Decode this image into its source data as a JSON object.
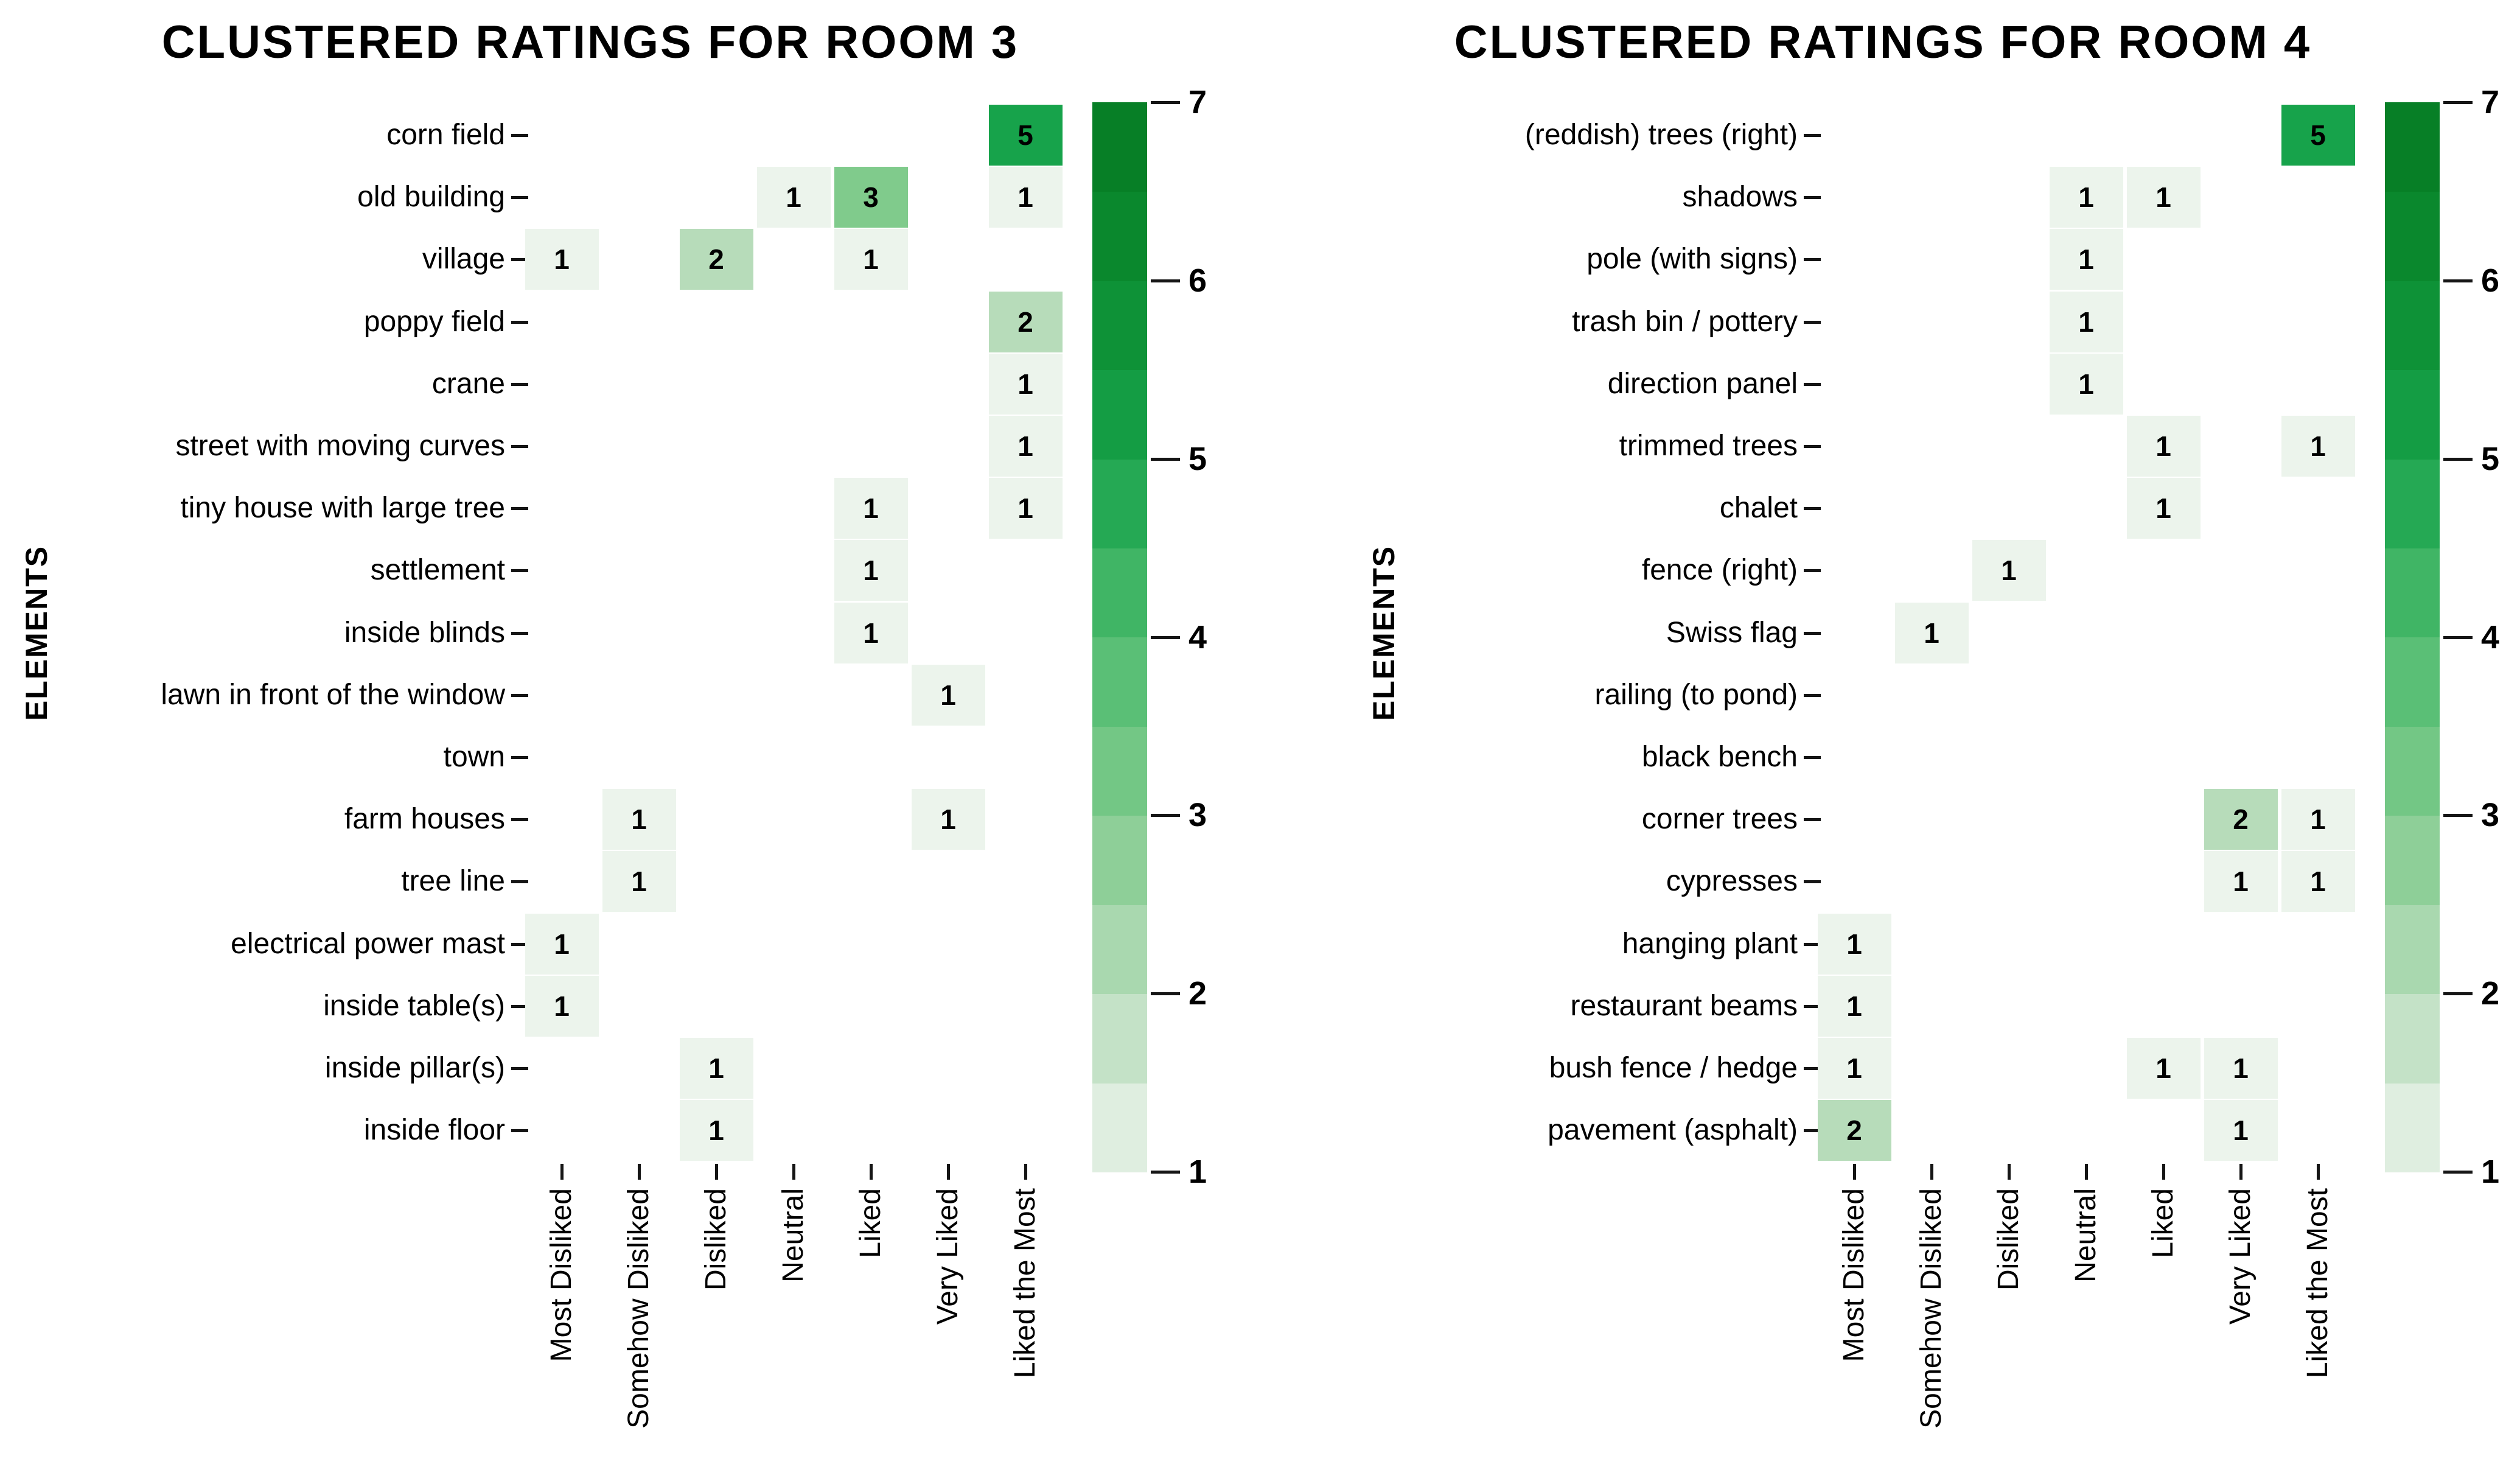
{
  "page": {
    "background": "#ffffff",
    "text_color": "#000000"
  },
  "colormap": {
    "1": "#ecf4ec",
    "2": "#b7dcba",
    "3": "#80cb8c",
    "4": "#4dbb6e",
    "5": "#17a34b",
    "6": "#0b8c30",
    "7": "#067a22"
  },
  "chart_data": [
    {
      "type": "heatmap",
      "title": "CLUSTERED RATINGS FOR ROOM 3",
      "ylabel": "ELEMENTS",
      "xlabel": "",
      "grid": false,
      "legend_position": "right-colorbar",
      "columns": [
        "Most Disliked",
        "Somehow Disliked",
        "Disliked",
        "Neutral",
        "Liked",
        "Very Liked",
        "Liked the Most"
      ],
      "rows": [
        "corn field",
        "old building",
        "village",
        "poppy field",
        "crane",
        "street with moving curves",
        "tiny house with large tree",
        "settlement",
        "inside blinds",
        "lawn in front of the window",
        "town",
        "farm houses",
        "tree line",
        "electrical power mast",
        "inside table(s)",
        "inside pillar(s)",
        "inside floor"
      ],
      "cells": [
        {
          "row": "corn field",
          "col": "Liked the Most",
          "value": 5
        },
        {
          "row": "old building",
          "col": "Neutral",
          "value": 1
        },
        {
          "row": "old building",
          "col": "Liked",
          "value": 3
        },
        {
          "row": "old building",
          "col": "Liked the Most",
          "value": 1
        },
        {
          "row": "village",
          "col": "Most Disliked",
          "value": 1
        },
        {
          "row": "village",
          "col": "Disliked",
          "value": 2
        },
        {
          "row": "village",
          "col": "Liked",
          "value": 1
        },
        {
          "row": "poppy field",
          "col": "Liked the Most",
          "value": 2
        },
        {
          "row": "crane",
          "col": "Liked the Most",
          "value": 1
        },
        {
          "row": "street with moving curves",
          "col": "Liked the Most",
          "value": 1
        },
        {
          "row": "tiny house with large tree",
          "col": "Liked",
          "value": 1
        },
        {
          "row": "tiny house with large tree",
          "col": "Liked the Most",
          "value": 1
        },
        {
          "row": "settlement",
          "col": "Liked",
          "value": 1
        },
        {
          "row": "inside blinds",
          "col": "Liked",
          "value": 1
        },
        {
          "row": "lawn in front of the window",
          "col": "Very Liked",
          "value": 1
        },
        {
          "row": "farm houses",
          "col": "Somehow Disliked",
          "value": 1
        },
        {
          "row": "farm houses",
          "col": "Very Liked",
          "value": 1
        },
        {
          "row": "tree line",
          "col": "Somehow Disliked",
          "value": 1
        },
        {
          "row": "electrical power mast",
          "col": "Most Disliked",
          "value": 1
        },
        {
          "row": "inside table(s)",
          "col": "Most Disliked",
          "value": 1
        },
        {
          "row": "inside pillar(s)",
          "col": "Disliked",
          "value": 1
        },
        {
          "row": "inside floor",
          "col": "Disliked",
          "value": 1
        }
      ],
      "colorbar": {
        "min": 1,
        "max": 7,
        "ticks": [
          7,
          6,
          5,
          4,
          3,
          2,
          1
        ]
      }
    },
    {
      "type": "heatmap",
      "title": "CLUSTERED RATINGS FOR ROOM 4",
      "ylabel": "ELEMENTS",
      "xlabel": "",
      "grid": false,
      "legend_position": "right-colorbar",
      "columns": [
        "Most Disliked",
        "Somehow Disliked",
        "Disliked",
        "Neutral",
        "Liked",
        "Very Liked",
        "Liked the Most"
      ],
      "rows": [
        "(reddish) trees (right)",
        "shadows",
        "pole (with signs)",
        "trash bin / pottery",
        "direction panel",
        "trimmed trees",
        "chalet",
        "fence (right)",
        "Swiss flag",
        "railing (to pond)",
        "black bench",
        "corner trees",
        "cypresses",
        "hanging plant",
        "restaurant beams",
        "bush fence / hedge",
        "pavement (asphalt)"
      ],
      "cells": [
        {
          "row": "(reddish) trees (right)",
          "col": "Liked the Most",
          "value": 5
        },
        {
          "row": "shadows",
          "col": "Neutral",
          "value": 1
        },
        {
          "row": "shadows",
          "col": "Liked",
          "value": 1
        },
        {
          "row": "pole (with signs)",
          "col": "Neutral",
          "value": 1
        },
        {
          "row": "trash bin / pottery",
          "col": "Neutral",
          "value": 1
        },
        {
          "row": "direction panel",
          "col": "Neutral",
          "value": 1
        },
        {
          "row": "trimmed trees",
          "col": "Liked",
          "value": 1
        },
        {
          "row": "trimmed trees",
          "col": "Liked the Most",
          "value": 1
        },
        {
          "row": "chalet",
          "col": "Liked",
          "value": 1
        },
        {
          "row": "fence (right)",
          "col": "Disliked",
          "value": 1
        },
        {
          "row": "Swiss flag",
          "col": "Somehow Disliked",
          "value": 1
        },
        {
          "row": "corner trees",
          "col": "Very Liked",
          "value": 2
        },
        {
          "row": "corner trees",
          "col": "Liked the Most",
          "value": 1
        },
        {
          "row": "cypresses",
          "col": "Very Liked",
          "value": 1
        },
        {
          "row": "cypresses",
          "col": "Liked the Most",
          "value": 1
        },
        {
          "row": "hanging plant",
          "col": "Most Disliked",
          "value": 1
        },
        {
          "row": "restaurant beams",
          "col": "Most Disliked",
          "value": 1
        },
        {
          "row": "bush fence / hedge",
          "col": "Most Disliked",
          "value": 1
        },
        {
          "row": "bush fence / hedge",
          "col": "Liked",
          "value": 1
        },
        {
          "row": "bush fence / hedge",
          "col": "Very Liked",
          "value": 1
        },
        {
          "row": "pavement (asphalt)",
          "col": "Most Disliked",
          "value": 2
        },
        {
          "row": "pavement (asphalt)",
          "col": "Very Liked",
          "value": 1
        }
      ],
      "colorbar": {
        "min": 1,
        "max": 7,
        "ticks": [
          7,
          6,
          5,
          4,
          3,
          2,
          1
        ]
      }
    }
  ]
}
